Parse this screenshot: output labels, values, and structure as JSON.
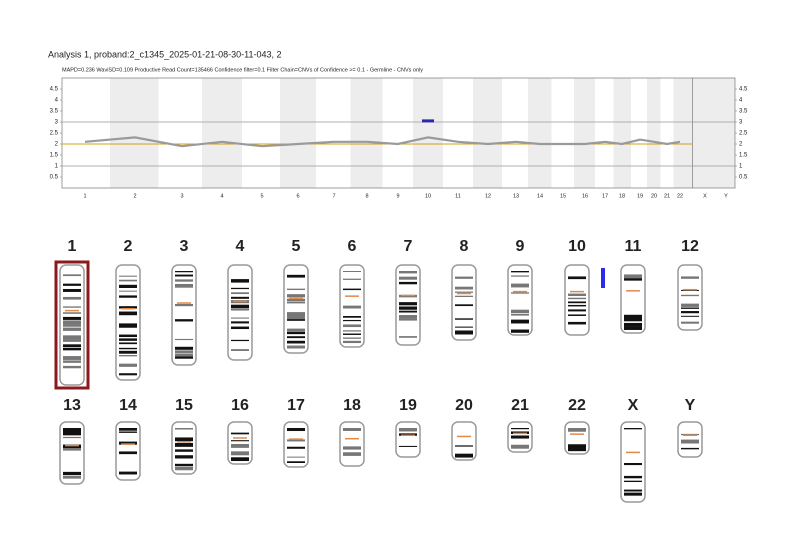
{
  "header": {
    "title": "Analysis 1, proband:2_c1345_2025-01-21-08-30-11-043, 2",
    "subtitle": "MAPD=0.236 WaviSD=0.109 Productive Read Count=135466 Confidence filter=0.1 Filter Chain=CNVs of Confidence >= 0.1 - Germline - CNVs only"
  },
  "chart_data": {
    "type": "line",
    "categories": [
      "1",
      "2",
      "3",
      "4",
      "5",
      "6",
      "7",
      "8",
      "9",
      "10",
      "11",
      "12",
      "13",
      "14",
      "15",
      "16",
      "17",
      "18",
      "19",
      "20",
      "21",
      "22",
      "X",
      "Y"
    ],
    "values": [
      2.1,
      2.3,
      1.9,
      2.1,
      1.9,
      2.0,
      2.1,
      2.1,
      2.0,
      2.3,
      2.1,
      2.0,
      2.1,
      2.0,
      2.0,
      2.0,
      2.1,
      2.0,
      2.2,
      2.1,
      2.0,
      2.1,
      null,
      null
    ],
    "color": "#9a9a9a",
    "ylim": [
      0,
      5
    ],
    "yticks": [
      0.5,
      1,
      1.5,
      2,
      2.5,
      3,
      3.5,
      4,
      4.5
    ],
    "y2lim": [
      0,
      5
    ],
    "y2ticks": [
      0.5,
      1,
      1.5,
      2,
      2.5,
      3,
      3.5,
      4,
      4.5
    ],
    "baseline": {
      "value": 2,
      "color": "#d4a017"
    },
    "hlines": {
      "values": [
        1,
        3
      ],
      "color": "#999999"
    },
    "cnv": {
      "category": "10",
      "value": 3.05,
      "color": "#2a2aa8"
    }
  },
  "karyogram": {
    "chromosomes": [
      "1",
      "2",
      "3",
      "4",
      "5",
      "6",
      "7",
      "8",
      "9",
      "10",
      "11",
      "12",
      "13",
      "14",
      "15",
      "16",
      "17",
      "18",
      "19",
      "20",
      "21",
      "22",
      "X",
      "Y"
    ],
    "selected": {
      "chromosome": "1",
      "color": "#8b1a1a"
    },
    "cnv": {
      "chromosome": "10",
      "color": "#2a2af0"
    }
  }
}
